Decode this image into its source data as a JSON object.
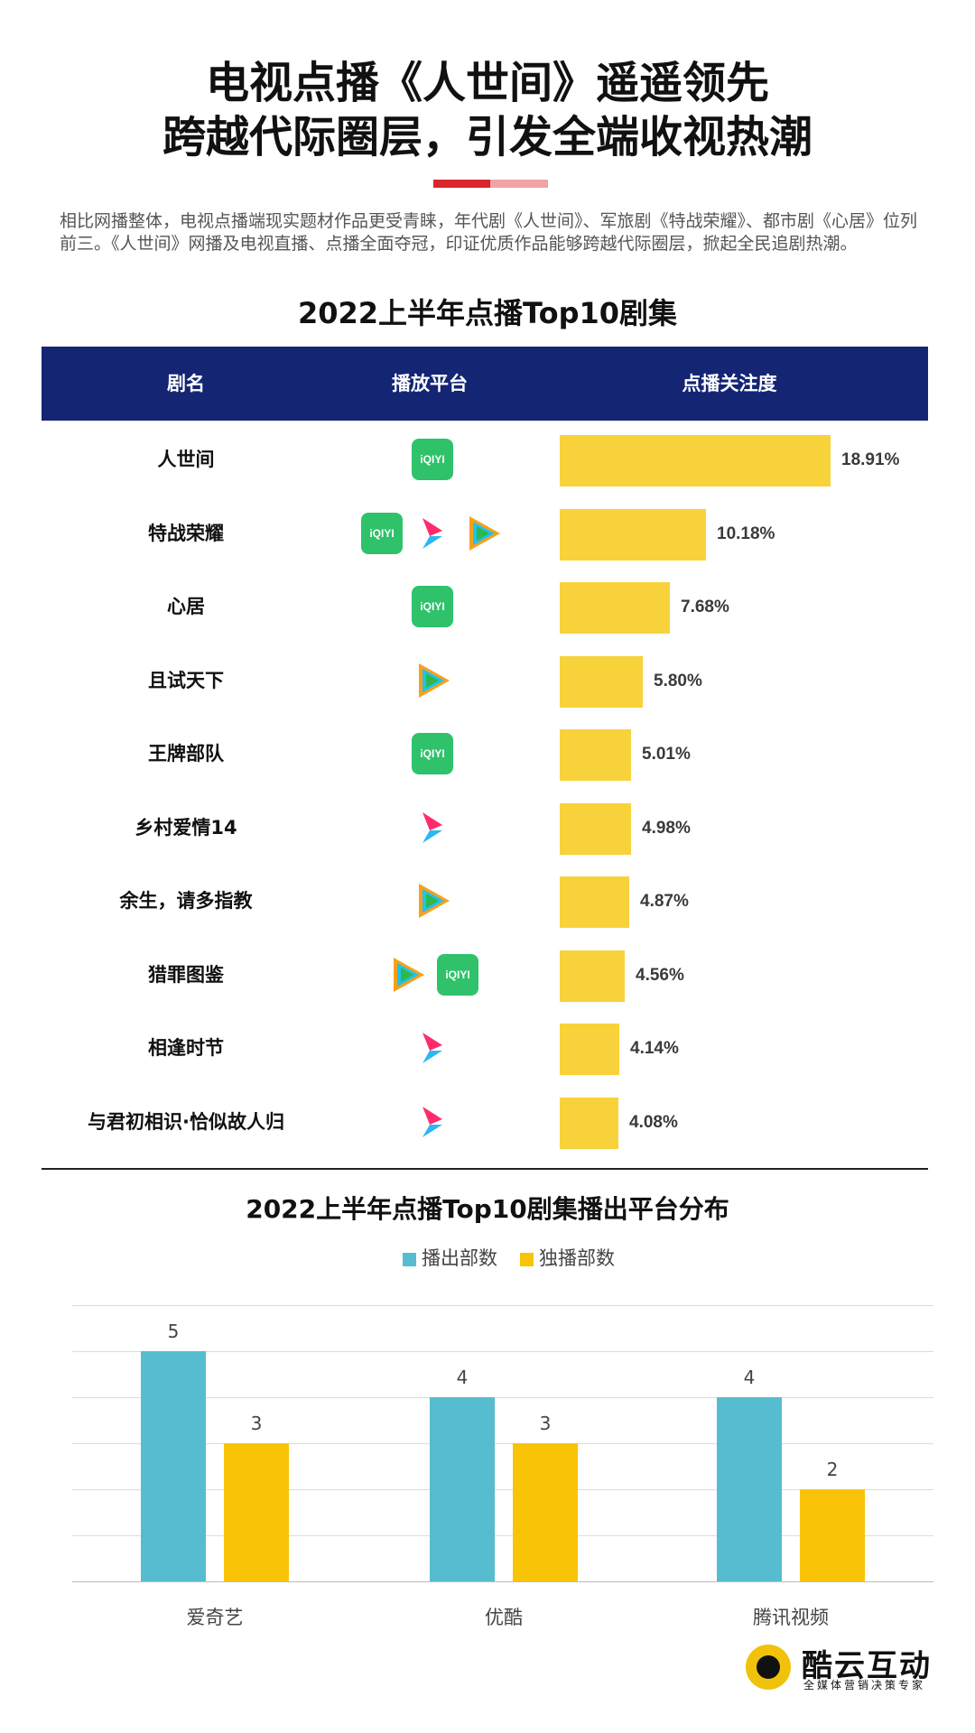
{
  "header": {
    "title_line1": "电视点播《人世间》遥遥领先",
    "title_line2": "跨越代际圈层，引发全端收视热潮",
    "accent_colors": [
      "#d9252b",
      "#f1a3a5"
    ],
    "intro": "相比网播整体，电视点播端现实题材作品更受青睐，年代剧《人世间》、军旅剧《特战荣耀》、都市剧《心居》位列前三。《人世间》网播及电视直播、点播全面夺冠，印证优质作品能够跨越代际圈层，掀起全民追剧热潮。"
  },
  "table": {
    "title": "2022上半年点播Top10剧集",
    "col_name": "剧名",
    "col_platform": "播放平台",
    "col_metric": "点播关注度",
    "header_color": "#142574",
    "bar_color": "#f8d23a"
  },
  "chart_data": [
    {
      "type": "bar",
      "title": "2022上半年点播Top10剧集",
      "categories": [
        "人世间",
        "特战荣耀",
        "心居",
        "且试天下",
        "王牌部队",
        "乡村爱情14",
        "余生，请多指教",
        "猎罪图鉴",
        "相逢时节",
        "与君初相识·恰似故人归"
      ],
      "values": [
        18.91,
        10.18,
        7.68,
        5.8,
        5.01,
        4.98,
        4.87,
        4.56,
        4.14,
        4.08
      ],
      "value_labels": [
        "18.91%",
        "10.18%",
        "7.68%",
        "5.80%",
        "5.01%",
        "4.98%",
        "4.87%",
        "4.56%",
        "4.14%",
        "4.08%"
      ],
      "platforms": [
        [
          "iqiyi"
        ],
        [
          "iqiyi",
          "youku",
          "tencent"
        ],
        [
          "iqiyi"
        ],
        [
          "tencent"
        ],
        [
          "iqiyi"
        ],
        [
          "youku"
        ],
        [
          "tencent"
        ],
        [
          "tencent",
          "iqiyi"
        ],
        [
          "youku"
        ],
        [
          "youku"
        ]
      ],
      "orientation": "horizontal",
      "unit": "%"
    },
    {
      "type": "bar",
      "title": "2022上半年点播Top10剧集播出平台分布",
      "categories": [
        "爱奇艺",
        "优酷",
        "腾讯视频"
      ],
      "series": [
        {
          "name": "播出部数",
          "values": [
            5,
            4,
            4
          ],
          "color": "#56bccf"
        },
        {
          "name": "独播部数",
          "values": [
            3,
            3,
            2
          ],
          "color": "#f9c308"
        }
      ],
      "ylim": [
        0,
        6
      ],
      "grid": true,
      "legend": "top-center"
    }
  ],
  "platform_icons": {
    "iqiyi": {
      "text": "iQIYI",
      "color": "#2fc26a"
    },
    "youku": {
      "icon": "youku-play-icon",
      "colors": [
        "#ff2c6b",
        "#2bb7f3"
      ]
    },
    "tencent": {
      "icon": "tencent-video-icon",
      "colors": [
        "#f7a11a",
        "#1ec3f0",
        "#2fb74a"
      ]
    }
  },
  "brand": {
    "name": "酷云互动",
    "tagline": "全媒体营销决策专家",
    "color": "#f0c20a"
  }
}
